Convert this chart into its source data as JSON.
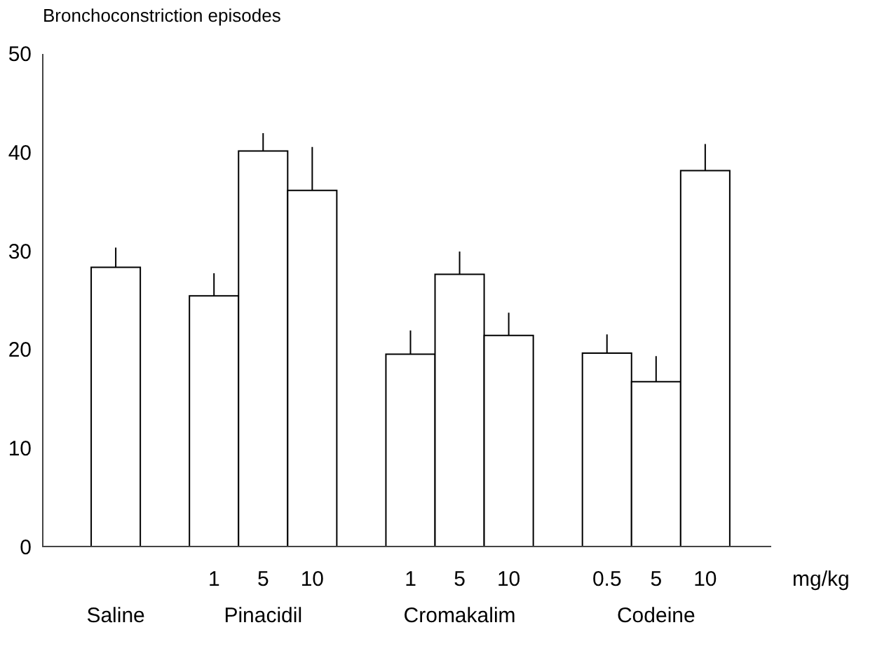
{
  "chart_data": {
    "type": "bar",
    "ylabel": "Bronchoconstriction episodes",
    "xlabel": "mg/kg",
    "categories": [
      null,
      "1",
      "5",
      "10",
      "1",
      "5",
      "10",
      "0.5",
      "5",
      "10"
    ],
    "values": [
      28.3,
      25.4,
      40.1,
      36.1,
      19.5,
      27.6,
      21.4,
      19.6,
      16.7,
      38.1
    ],
    "errors": [
      [
        28.3,
        30.3
      ],
      [
        25.4,
        27.7
      ],
      [
        40.1,
        41.9
      ],
      [
        36.1,
        40.5
      ],
      [
        19.5,
        21.9
      ],
      [
        27.6,
        29.9
      ],
      [
        21.4,
        23.7
      ],
      [
        19.6,
        21.5
      ],
      [
        16.7,
        19.3
      ],
      [
        38.1,
        40.8
      ]
    ],
    "colors": [
      "#ffffff",
      "#ffffff",
      "#ffffff",
      "#ffffff",
      "#ffffff",
      "#ffffff",
      "#ffffff",
      "#ffffff",
      "#ffffff",
      "#ffffff"
    ],
    "annotations": [
      "Saline",
      "Pinacidil",
      "Cromakalim",
      "Codeine"
    ],
    "ylim": [
      0,
      50
    ],
    "yticks": [
      0,
      10,
      20,
      30,
      40,
      50
    ],
    "grid": false
  }
}
